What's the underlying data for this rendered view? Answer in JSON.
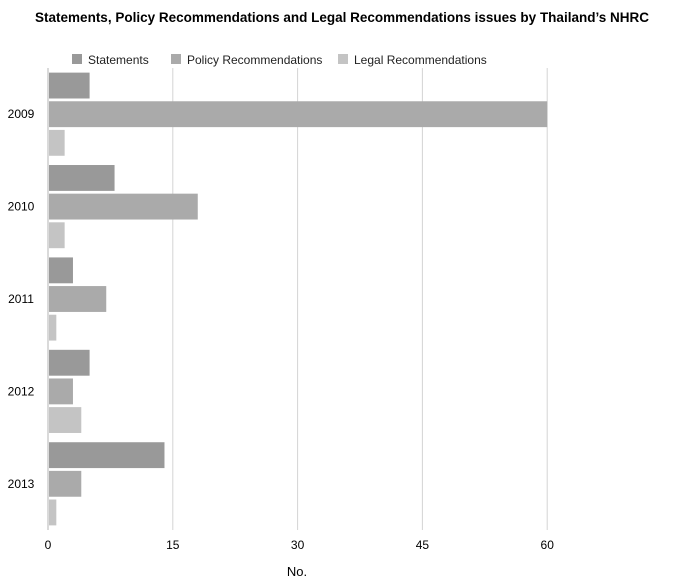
{
  "chart_data": {
    "type": "bar",
    "orientation": "horizontal",
    "title": "Statements, Policy Recommendations and Legal Recommendations issues by  Thailand’s NHRC",
    "xlabel": "No.",
    "ylabel": "",
    "categories": [
      "2009",
      "2010",
      "2011",
      "2012",
      "2013"
    ],
    "series": [
      {
        "name": "Statements",
        "values": [
          5,
          8,
          3,
          5,
          14
        ],
        "color": "#999999"
      },
      {
        "name": "Policy Recommendations",
        "values": [
          60,
          18,
          7,
          3,
          4
        ],
        "color": "#aaaaaa"
      },
      {
        "name": "Legal Recommendations",
        "values": [
          2,
          2,
          1,
          4,
          1
        ],
        "color": "#c4c4c4"
      }
    ],
    "xlim": [
      0,
      75
    ],
    "xticks": [
      0,
      15,
      30,
      45,
      60
    ],
    "grid": true,
    "legend_position": "top"
  }
}
